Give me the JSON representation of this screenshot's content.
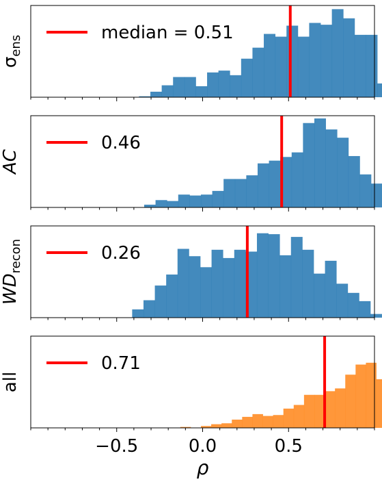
{
  "chart_data": [
    {
      "type": "bar",
      "panel": "sigma_ens",
      "ylabel": "σ",
      "ylabel_subscript": "ens",
      "ylabel_italic": false,
      "bar_color": "#2f7db6",
      "median": 0.51,
      "legend_label": "median = 0.51",
      "median_color": "#ff0000",
      "bin_start": -0.37,
      "bin_width": 0.066,
      "values": [
        1,
        6,
        13,
        22,
        22,
        12,
        27,
        29,
        24,
        42,
        54,
        69,
        66,
        78,
        66,
        81,
        79,
        96,
        86,
        68,
        68,
        15
      ],
      "ylim": [
        0,
        100
      ]
    },
    {
      "type": "bar",
      "panel": "AC",
      "ylabel": "AC",
      "ylabel_subscript": "",
      "ylabel_italic": true,
      "bar_color": "#2f7db6",
      "median": 0.46,
      "legend_label": "0.46",
      "median_color": "#ff0000",
      "bin_start": -0.34,
      "bin_width": 0.066,
      "values": [
        3,
        8,
        7,
        14,
        13,
        14,
        18,
        31,
        31,
        35,
        48,
        51,
        55,
        60,
        92,
        97,
        85,
        76,
        56,
        36,
        26,
        14
      ],
      "ylim": [
        0,
        100
      ]
    },
    {
      "type": "bar",
      "panel": "WD_recon",
      "ylabel": "WD",
      "ylabel_subscript": "recon",
      "ylabel_italic": true,
      "bar_color": "#2f7db6",
      "median": 0.26,
      "legend_label": "0.26",
      "median_color": "#ff0000",
      "bin_start": -0.41,
      "bin_width": 0.066,
      "values": [
        9,
        19,
        35,
        47,
        75,
        67,
        55,
        74,
        65,
        74,
        72,
        92,
        91,
        68,
        88,
        74,
        48,
        62,
        37,
        27,
        18,
        4
      ],
      "ylim": [
        0,
        100
      ]
    },
    {
      "type": "bar",
      "panel": "all",
      "ylabel": "all",
      "ylabel_subscript": "",
      "ylabel_italic": false,
      "bar_color": "#ff8c25",
      "median": 0.71,
      "legend_label": "0.71",
      "median_color": "#ff0000",
      "bin_start": -0.13,
      "bin_width": 0.06,
      "values": [
        1,
        0,
        2,
        4,
        5,
        9,
        12,
        15,
        13,
        14,
        21,
        25,
        36,
        36,
        40,
        43,
        58,
        69,
        71,
        53,
        49,
        44
      ],
      "ylim": [
        0,
        100
      ]
    }
  ],
  "xaxis": {
    "xlim": [
      -1.0,
      1.0
    ],
    "ticks": [
      -0.5,
      0.0,
      0.5
    ],
    "tick_labels": [
      "−0.5",
      "0.0",
      "0.5"
    ],
    "minor_step": 0.1,
    "xlabel": "ρ"
  }
}
